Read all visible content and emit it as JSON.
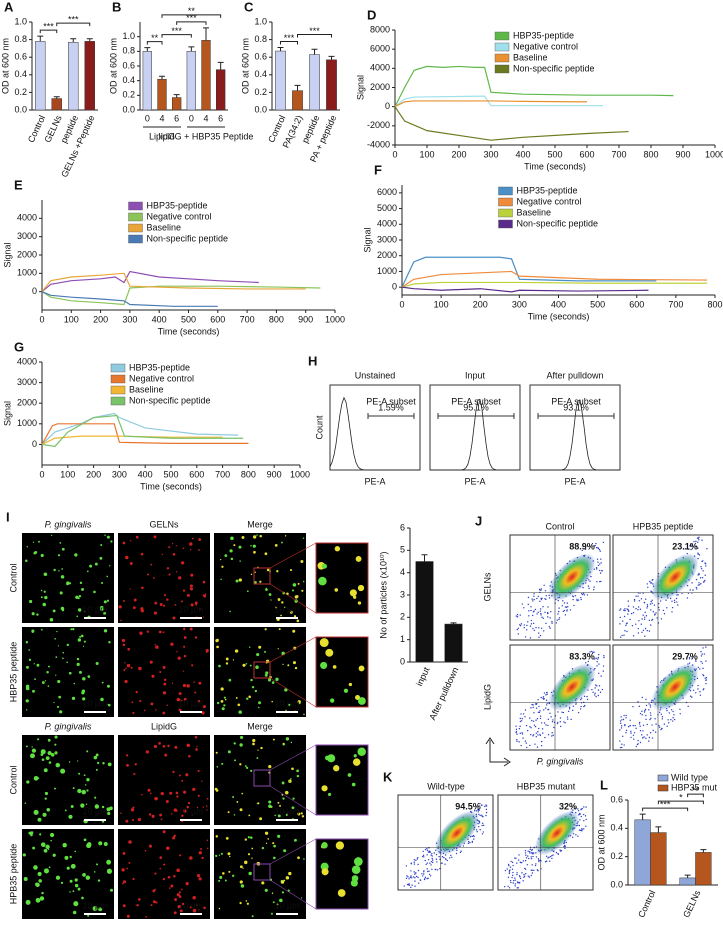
{
  "chart_data": [
    {
      "type": "bar",
      "panel": "A",
      "y_label": "OD at 600 nm",
      "categories": [
        "Control",
        "GELNs",
        "peptide",
        "GELNs +Peptide"
      ],
      "values": [
        0.78,
        0.13,
        0.77,
        0.78
      ],
      "errors": [
        0.06,
        0.02,
        0.04,
        0.03
      ],
      "colors": [
        "#c9d1f2",
        "#a8461f",
        "#c9d1f2",
        "#8a1c1c"
      ],
      "ylim": [
        0,
        1
      ],
      "yticks": [
        {
          "value": 0,
          "label": "0.0"
        },
        0.2,
        0.4,
        0.6,
        0.8,
        {
          "value": 1,
          "label": "1.0"
        }
      ],
      "annotations": [
        "***",
        "***"
      ]
    },
    {
      "type": "bar",
      "panel": "B",
      "y_label": "OD at 600 nm",
      "categories": [
        "0",
        "4",
        "6",
        "0",
        "4",
        "6"
      ],
      "groups": [
        "LipidG",
        "lipidG + HBP35 Peptide"
      ],
      "values": [
        0.8,
        0.42,
        0.17,
        0.8,
        0.95,
        0.55
      ],
      "errors": [
        0.05,
        0.04,
        0.04,
        0.06,
        0.17,
        0.1
      ],
      "colors": [
        "#c9d1f2",
        "#b5561f",
        "#b5561f",
        "#c9d1f2",
        "#b5561f",
        "#8a1c1c"
      ],
      "ylim": [
        0,
        1.2
      ],
      "yticks": [
        {
          "value": 0,
          "label": "0.0"
        },
        0.2,
        0.4,
        0.6,
        0.8,
        {
          "value": 1,
          "label": "1.0"
        }
      ],
      "annotations": [
        "**",
        "***",
        "***",
        "**"
      ]
    },
    {
      "type": "bar",
      "panel": "C",
      "y_label": "OD at 600 nm",
      "categories": [
        "Control",
        "PA(34:2)",
        "peptide",
        "PA + peptide"
      ],
      "values": [
        0.67,
        0.22,
        0.63,
        0.57
      ],
      "errors": [
        0.04,
        0.06,
        0.06,
        0.04
      ],
      "colors": [
        "#c9d1f2",
        "#b5561f",
        "#c9d1f2",
        "#8a1c1c"
      ],
      "ylim": [
        0,
        1
      ],
      "yticks": [
        {
          "value": 0,
          "label": "0.0"
        },
        0.2,
        0.4,
        0.6,
        0.8,
        {
          "value": 1,
          "label": "1.0"
        }
      ],
      "annotations": [
        "***",
        "***"
      ]
    },
    {
      "type": "line",
      "panel": "D",
      "x_label": "Time (seconds)",
      "y_label": "Signal",
      "legend": "upper center",
      "xlim": [
        0,
        1000
      ],
      "xticks": [
        0,
        100,
        200,
        300,
        400,
        500,
        600,
        700,
        800,
        900,
        1000
      ],
      "ylim": [
        -4000,
        8000
      ],
      "yticks": [
        -4000,
        -2000,
        0,
        2000,
        4000,
        6000,
        8000
      ],
      "series": [
        {
          "name": "HBP35-peptide",
          "color": "#5fb84a",
          "x": [
            0,
            30,
            60,
            100,
            150,
            200,
            250,
            280,
            300,
            400,
            600,
            800,
            870
          ],
          "values": [
            0,
            2000,
            3800,
            4200,
            4100,
            4200,
            4100,
            4100,
            1500,
            1300,
            1200,
            1200,
            1150
          ]
        },
        {
          "name": "Negative control",
          "color": "#9fe0ec",
          "x": [
            0,
            30,
            60,
            280,
            300,
            400,
            650
          ],
          "values": [
            0,
            800,
            1000,
            1100,
            100,
            100,
            100
          ]
        },
        {
          "name": "Baseline",
          "color": "#e8912e",
          "x": [
            0,
            30,
            60,
            300,
            400,
            600
          ],
          "values": [
            0,
            500,
            600,
            600,
            550,
            500
          ]
        },
        {
          "name": "Non-specific peptide",
          "color": "#6b7a1e",
          "x": [
            0,
            30,
            100,
            200,
            300,
            400,
            600,
            730
          ],
          "values": [
            0,
            -1500,
            -2500,
            -3000,
            -3500,
            -3200,
            -2800,
            -2600
          ]
        }
      ]
    },
    {
      "type": "line",
      "panel": "E",
      "x_label": "Time (seconds)",
      "y_label": "Signal",
      "legend": "upper center",
      "xlim": [
        0,
        1000
      ],
      "xticks": [
        0,
        100,
        200,
        300,
        400,
        500,
        600,
        700,
        800,
        900,
        1000
      ],
      "ylim": [
        -1000,
        5000
      ],
      "yticks": [
        0,
        1000,
        2000,
        3000,
        4000
      ],
      "series": [
        {
          "name": "HBP35-peptide",
          "color": "#8e4fb5",
          "x": [
            0,
            30,
            100,
            200,
            250,
            280,
            300,
            400,
            600,
            740
          ],
          "values": [
            0,
            400,
            600,
            700,
            800,
            500,
            1100,
            800,
            600,
            500
          ]
        },
        {
          "name": "Negative control",
          "color": "#8cc45a",
          "x": [
            0,
            30,
            100,
            200,
            280,
            300,
            400,
            600,
            800,
            950
          ],
          "values": [
            0,
            -300,
            -500,
            -600,
            -700,
            200,
            300,
            300,
            250,
            200
          ]
        },
        {
          "name": "Baseline",
          "color": "#e8a63a",
          "x": [
            0,
            30,
            100,
            200,
            280,
            300,
            500,
            700,
            900
          ],
          "values": [
            0,
            600,
            800,
            900,
            1000,
            300,
            200,
            150,
            150
          ]
        },
        {
          "name": "Non-specific peptide",
          "color": "#4a7ab5",
          "x": [
            0,
            30,
            100,
            200,
            280,
            300,
            450,
            600
          ],
          "values": [
            0,
            -200,
            -300,
            -400,
            -500,
            -700,
            -800,
            -800
          ]
        }
      ]
    },
    {
      "type": "line",
      "panel": "F",
      "x_label": "Time (seconds)",
      "y_label": "Signal",
      "legend": "upper center",
      "xlim": [
        0,
        800
      ],
      "xticks": [
        0,
        100,
        200,
        300,
        400,
        500,
        600,
        700,
        800
      ],
      "ylim": [
        -500,
        6500
      ],
      "yticks": [
        0,
        1000,
        2000,
        3000,
        4000,
        5000,
        6000
      ],
      "series": [
        {
          "name": "HBP35-peptide",
          "color": "#4a90c8",
          "x": [
            0,
            30,
            60,
            250,
            280,
            300,
            450,
            650
          ],
          "values": [
            0,
            1600,
            1900,
            1900,
            1800,
            500,
            400,
            400
          ]
        },
        {
          "name": "Negative control",
          "color": "#ef8a3c",
          "x": [
            0,
            30,
            100,
            280,
            300,
            500,
            780
          ],
          "values": [
            0,
            500,
            800,
            1000,
            700,
            500,
            450
          ]
        },
        {
          "name": "Baseline",
          "color": "#bcd23a",
          "x": [
            0,
            30,
            100,
            300,
            500,
            780
          ],
          "values": [
            0,
            200,
            300,
            300,
            250,
            250
          ]
        },
        {
          "name": "Non-specific peptide",
          "color": "#5a2a8a",
          "x": [
            0,
            30,
            100,
            200,
            280,
            300,
            450,
            630
          ],
          "values": [
            0,
            -100,
            -200,
            -100,
            -300,
            -200,
            -250,
            -200
          ]
        }
      ]
    },
    {
      "type": "line",
      "panel": "G",
      "x_label": "Time (seconds)",
      "y_label": "Signal",
      "legend": "upper center",
      "xlim": [
        0,
        1000
      ],
      "xticks": [
        0,
        100,
        200,
        300,
        400,
        500,
        600,
        700,
        800,
        900,
        1000
      ],
      "ylim": [
        -1000,
        4000
      ],
      "yticks": [
        0,
        1000,
        2000,
        3000,
        4000
      ],
      "series": [
        {
          "name": "HBP35-peptide",
          "color": "#8fcbe0",
          "x": [
            0,
            50,
            150,
            200,
            280,
            300,
            400,
            600,
            760
          ],
          "values": [
            0,
            600,
            1000,
            1300,
            1500,
            1300,
            800,
            500,
            450
          ]
        },
        {
          "name": "Negative control",
          "color": "#e8772e",
          "x": [
            0,
            40,
            60,
            280,
            300,
            500,
            800
          ],
          "values": [
            0,
            900,
            1000,
            1000,
            100,
            50,
            50
          ]
        },
        {
          "name": "Baseline",
          "color": "#f2b632",
          "x": [
            0,
            50,
            150,
            300,
            500,
            700
          ],
          "values": [
            0,
            300,
            400,
            400,
            350,
            350
          ]
        },
        {
          "name": "Non-specific peptide",
          "color": "#7ac36a",
          "x": [
            0,
            50,
            100,
            200,
            290,
            320,
            500,
            780
          ],
          "values": [
            0,
            -100,
            600,
            1300,
            1400,
            400,
            300,
            300
          ]
        }
      ]
    },
    {
      "type": "bar",
      "y_label": "No of particles (x10¹⁰)",
      "categories": [
        "input",
        "After pulldown"
      ],
      "values": [
        4.5,
        1.7
      ],
      "errors": [
        0.3,
        0.05
      ],
      "colors": [
        "#111111",
        "#111111"
      ],
      "ylim": [
        0,
        6
      ],
      "yticks": [
        0,
        1,
        2,
        3,
        4,
        5,
        6
      ]
    },
    {
      "type": "bar",
      "panel": "L",
      "y_label": "OD at 600 nm",
      "legend": "upper right",
      "categories": [
        "Control",
        "GELNs"
      ],
      "series": [
        {
          "name": "Wild type",
          "color": "#8fa6d8",
          "values": [
            0.46,
            0.05
          ],
          "errors": [
            0.04,
            0.02
          ]
        },
        {
          "name": "HBP35 mut",
          "color": "#b5561f",
          "values": [
            0.37,
            0.23
          ],
          "errors": [
            0.04,
            0.02
          ]
        }
      ],
      "ylim": [
        0,
        0.6
      ],
      "yticks": [
        {
          "value": 0,
          "label": "0.0"
        },
        0.2,
        0.4,
        0.6
      ],
      "annotations": [
        "***",
        "*",
        "**"
      ]
    }
  ],
  "panels": {
    "H": {
      "label": "H",
      "titles": [
        "Unstained",
        "Input",
        "After pulldown"
      ],
      "gate_name": "PE-A subset",
      "gates": [
        "1.59%",
        "95.1%",
        "93.1%"
      ],
      "x_label": "PE-A",
      "y_label": "Count"
    },
    "I": {
      "label": "I",
      "columns_top": [
        "P. gingivalis",
        "GELNs",
        "Merge"
      ],
      "rows_top": [
        "Control",
        "HBP35 peptide"
      ],
      "columns_bottom": [
        "P. gingivalis",
        "LipidG",
        "Merge"
      ],
      "rows_bottom": [
        "Control",
        "HPB35 peptide"
      ],
      "scale": "10 µm"
    },
    "J": {
      "label": "J",
      "columns": [
        "Control",
        "HPB35 peptide"
      ],
      "rows": [
        "GELNs",
        "LipidG"
      ],
      "percent": [
        "88.9%",
        "23.1%",
        "83.3%",
        "29.7%"
      ],
      "x_label": "P. gingivalis"
    },
    "K": {
      "label": "K",
      "columns": [
        "Wild-type",
        "HBP35 mutant"
      ],
      "percent": [
        "94.5%",
        "32%"
      ]
    }
  }
}
